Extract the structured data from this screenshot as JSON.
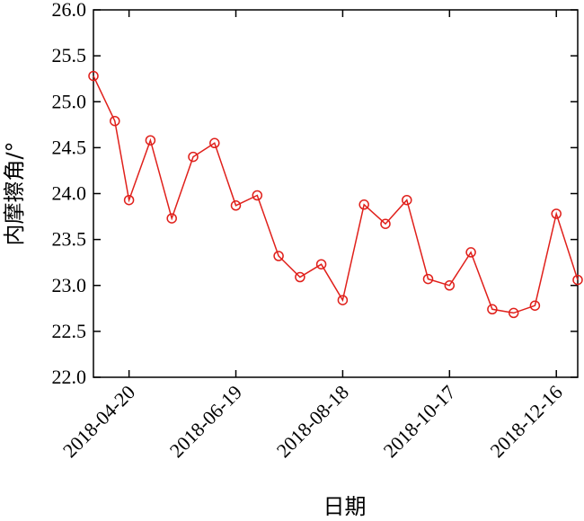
{
  "chart_data": {
    "type": "line",
    "xlabel": "日期",
    "ylabel": "内摩擦角/°",
    "ylim": [
      22.0,
      26.0
    ],
    "yticks": [
      "22.0",
      "22.5",
      "23.0",
      "23.5",
      "24.0",
      "24.5",
      "25.0",
      "25.5",
      "26.0"
    ],
    "xlim": [
      "2018-03-31",
      "2018-12-28"
    ],
    "xticks": [
      "2018-04-20",
      "2018-06-19",
      "2018-08-18",
      "2018-10-17",
      "2018-12-16"
    ],
    "grid": false,
    "line_color": "#e0201b",
    "marker": "open-circle",
    "series": [
      {
        "points": [
          {
            "x": "2018-03-31",
            "y": 25.28
          },
          {
            "x": "2018-04-12",
            "y": 24.79
          },
          {
            "x": "2018-04-20",
            "y": 23.93
          },
          {
            "x": "2018-05-02",
            "y": 24.58
          },
          {
            "x": "2018-05-14",
            "y": 23.73
          },
          {
            "x": "2018-05-26",
            "y": 24.4
          },
          {
            "x": "2018-06-07",
            "y": 24.55
          },
          {
            "x": "2018-06-19",
            "y": 23.87
          },
          {
            "x": "2018-07-01",
            "y": 23.98
          },
          {
            "x": "2018-07-13",
            "y": 23.32
          },
          {
            "x": "2018-07-25",
            "y": 23.09
          },
          {
            "x": "2018-08-06",
            "y": 23.23
          },
          {
            "x": "2018-08-18",
            "y": 22.84
          },
          {
            "x": "2018-08-30",
            "y": 23.88
          },
          {
            "x": "2018-09-11",
            "y": 23.67
          },
          {
            "x": "2018-09-23",
            "y": 23.93
          },
          {
            "x": "2018-10-05",
            "y": 23.07
          },
          {
            "x": "2018-10-17",
            "y": 23.0
          },
          {
            "x": "2018-10-29",
            "y": 23.36
          },
          {
            "x": "2018-11-10",
            "y": 22.74
          },
          {
            "x": "2018-11-22",
            "y": 22.7
          },
          {
            "x": "2018-12-04",
            "y": 22.78
          },
          {
            "x": "2018-12-16",
            "y": 23.78
          },
          {
            "x": "2018-12-28",
            "y": 23.06
          }
        ]
      }
    ]
  }
}
